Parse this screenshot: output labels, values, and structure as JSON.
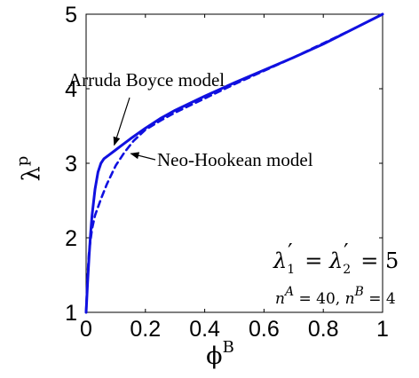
{
  "chart_data": {
    "type": "line",
    "xlabel": "ϕ",
    "xlabel_sup": "B",
    "ylabel": "λ",
    "ylabel_sup": "p",
    "xlim": [
      0,
      1
    ],
    "ylim": [
      1,
      5
    ],
    "xticks": [
      "0",
      "0.2",
      "0.4",
      "0.6",
      "0.8",
      "1"
    ],
    "yticks": [
      "1",
      "2",
      "3",
      "4",
      "5"
    ],
    "grid": false,
    "series": [
      {
        "name": "Arruda Boyce model",
        "style": "solid",
        "color": "#1010e0",
        "x": [
          0.0,
          0.005,
          0.01,
          0.015,
          0.02,
          0.03,
          0.04,
          0.05,
          0.06,
          0.07,
          0.08,
          0.1,
          0.12,
          0.15,
          0.2,
          0.25,
          0.3,
          0.4,
          0.5,
          0.6,
          0.7,
          0.8,
          0.9,
          1.0
        ],
        "y": [
          1.0,
          1.4,
          1.75,
          2.05,
          2.3,
          2.65,
          2.88,
          3.0,
          3.06,
          3.09,
          3.12,
          3.18,
          3.24,
          3.33,
          3.47,
          3.6,
          3.71,
          3.9,
          4.08,
          4.25,
          4.42,
          4.6,
          4.8,
          5.0
        ]
      },
      {
        "name": "Neo-Hookean model",
        "style": "dashed",
        "color": "#1010e0",
        "x": [
          0.0,
          0.005,
          0.01,
          0.02,
          0.03,
          0.05,
          0.07,
          0.1,
          0.13,
          0.16,
          0.2,
          0.25,
          0.3,
          0.4,
          0.5,
          0.6,
          0.7,
          0.8,
          0.9,
          1.0
        ],
        "y": [
          1.0,
          1.5,
          1.82,
          2.12,
          2.3,
          2.52,
          2.72,
          2.97,
          3.15,
          3.3,
          3.45,
          3.57,
          3.68,
          3.87,
          4.06,
          4.24,
          4.42,
          4.61,
          4.8,
          5.0
        ]
      }
    ],
    "annotations": [
      {
        "text": "Arruda Boyce model",
        "arrow_to": [
          0.095,
          3.21
        ]
      },
      {
        "text": "Neo-Hookean model",
        "arrow_to": [
          0.145,
          3.13
        ]
      }
    ],
    "params": {
      "lambda1_sub": "1",
      "lambda2_sub": "2",
      "lambda_value": "5",
      "nA": "40",
      "nB": "4"
    }
  }
}
